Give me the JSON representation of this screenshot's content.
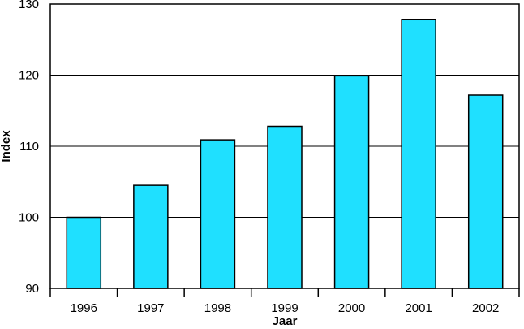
{
  "chart_data": {
    "type": "bar",
    "title": "",
    "xlabel": "Jaar",
    "ylabel": "Index",
    "categories": [
      "1996",
      "1997",
      "1998",
      "1999",
      "2000",
      "2001",
      "2002"
    ],
    "values": [
      100,
      104.5,
      110.9,
      112.8,
      119.9,
      127.8,
      117.2
    ],
    "ylim": [
      90,
      130
    ],
    "yticks": [
      90,
      100,
      110,
      120,
      130
    ],
    "grid": true,
    "colors": {
      "bar": "#1fe0ff",
      "bar_stroke": "#000000",
      "grid": "#000000"
    }
  }
}
